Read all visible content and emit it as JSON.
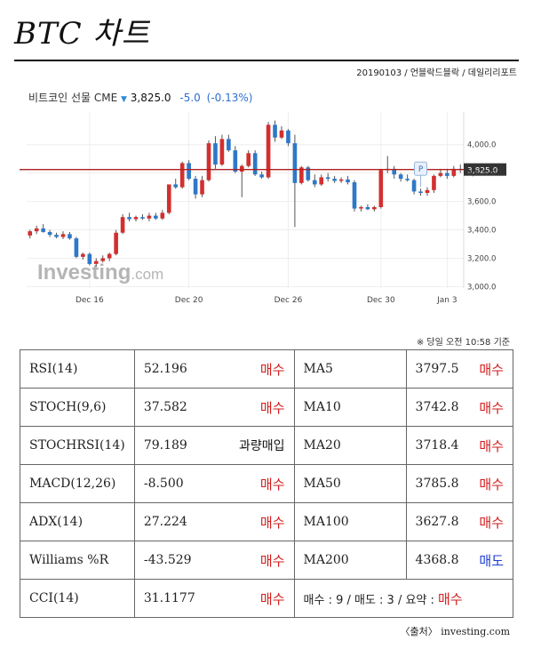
{
  "header": {
    "title": "BTC 차트",
    "meta": "20190103 / 언블락드블락 / 데일리리포트"
  },
  "chart_header": {
    "instrument": "비트코인 선물 CME",
    "price": "3,825.0",
    "change": "-5.0",
    "change_pct": "(-0.13%)",
    "marker_label": "P"
  },
  "watermark": {
    "main": "Investing",
    "suffix": ".com"
  },
  "chart_data": {
    "type": "candlestick",
    "x_tick_labels": [
      "Dec 16",
      "Dec 20",
      "Dec 26",
      "Dec 30",
      "Jan 3"
    ],
    "y_tick_labels": [
      "3,000.0",
      "3,200.0",
      "3,400.0",
      "3,600.0",
      "3,800.0",
      "4,000.0"
    ],
    "y_ticks": [
      3000,
      3200,
      3400,
      3600,
      3800,
      4000
    ],
    "ylim": [
      2990,
      4230
    ],
    "current_price": 3825,
    "current_label": "3,825.0",
    "colors": {
      "up": "#d32f2f",
      "down": "#2e78c8",
      "line": "#b02020"
    },
    "candles": [
      {
        "o": 3360,
        "h": 3400,
        "l": 3340,
        "c": 3390
      },
      {
        "o": 3390,
        "h": 3430,
        "l": 3370,
        "c": 3410
      },
      {
        "o": 3410,
        "h": 3440,
        "l": 3380,
        "c": 3385
      },
      {
        "o": 3385,
        "h": 3400,
        "l": 3350,
        "c": 3365
      },
      {
        "o": 3365,
        "h": 3380,
        "l": 3340,
        "c": 3350
      },
      {
        "o": 3350,
        "h": 3390,
        "l": 3335,
        "c": 3370
      },
      {
        "o": 3370,
        "h": 3385,
        "l": 3330,
        "c": 3340
      },
      {
        "o": 3340,
        "h": 3350,
        "l": 3200,
        "c": 3210
      },
      {
        "o": 3210,
        "h": 3240,
        "l": 3190,
        "c": 3230
      },
      {
        "o": 3230,
        "h": 3240,
        "l": 3150,
        "c": 3160
      },
      {
        "o": 3160,
        "h": 3200,
        "l": 3140,
        "c": 3180
      },
      {
        "o": 3180,
        "h": 3220,
        "l": 3170,
        "c": 3200
      },
      {
        "o": 3200,
        "h": 3240,
        "l": 3180,
        "c": 3230
      },
      {
        "o": 3230,
        "h": 3400,
        "l": 3220,
        "c": 3380
      },
      {
        "o": 3380,
        "h": 3510,
        "l": 3370,
        "c": 3490
      },
      {
        "o": 3490,
        "h": 3520,
        "l": 3460,
        "c": 3475
      },
      {
        "o": 3475,
        "h": 3500,
        "l": 3460,
        "c": 3490
      },
      {
        "o": 3490,
        "h": 3510,
        "l": 3470,
        "c": 3480
      },
      {
        "o": 3480,
        "h": 3520,
        "l": 3460,
        "c": 3500
      },
      {
        "o": 3500,
        "h": 3520,
        "l": 3470,
        "c": 3480
      },
      {
        "o": 3480,
        "h": 3540,
        "l": 3470,
        "c": 3520
      },
      {
        "o": 3520,
        "h": 3720,
        "l": 3510,
        "c": 3720
      },
      {
        "o": 3720,
        "h": 3760,
        "l": 3690,
        "c": 3700
      },
      {
        "o": 3700,
        "h": 3880,
        "l": 3690,
        "c": 3870
      },
      {
        "o": 3870,
        "h": 3890,
        "l": 3750,
        "c": 3760
      },
      {
        "o": 3760,
        "h": 3780,
        "l": 3620,
        "c": 3650
      },
      {
        "o": 3650,
        "h": 3780,
        "l": 3630,
        "c": 3750
      },
      {
        "o": 3750,
        "h": 4030,
        "l": 3740,
        "c": 4010
      },
      {
        "o": 4010,
        "h": 4060,
        "l": 3830,
        "c": 3860
      },
      {
        "o": 3860,
        "h": 4070,
        "l": 3850,
        "c": 4040
      },
      {
        "o": 4040,
        "h": 4070,
        "l": 3950,
        "c": 3960
      },
      {
        "o": 3960,
        "h": 3990,
        "l": 3800,
        "c": 3810
      },
      {
        "o": 3810,
        "h": 3860,
        "l": 3630,
        "c": 3850
      },
      {
        "o": 3850,
        "h": 3960,
        "l": 3840,
        "c": 3940
      },
      {
        "o": 3940,
        "h": 3960,
        "l": 3780,
        "c": 3790
      },
      {
        "o": 3790,
        "h": 3810,
        "l": 3760,
        "c": 3770
      },
      {
        "o": 3770,
        "h": 4160,
        "l": 3760,
        "c": 4140
      },
      {
        "o": 4140,
        "h": 4170,
        "l": 4020,
        "c": 4050
      },
      {
        "o": 4050,
        "h": 4130,
        "l": 4040,
        "c": 4100
      },
      {
        "o": 4100,
        "h": 4110,
        "l": 3990,
        "c": 4010
      },
      {
        "o": 4010,
        "h": 4070,
        "l": 3420,
        "c": 3730
      },
      {
        "o": 3730,
        "h": 3850,
        "l": 3720,
        "c": 3840
      },
      {
        "o": 3840,
        "h": 3850,
        "l": 3740,
        "c": 3750
      },
      {
        "o": 3750,
        "h": 3790,
        "l": 3700,
        "c": 3720
      },
      {
        "o": 3720,
        "h": 3790,
        "l": 3710,
        "c": 3770
      },
      {
        "o": 3770,
        "h": 3800,
        "l": 3740,
        "c": 3760
      },
      {
        "o": 3760,
        "h": 3780,
        "l": 3730,
        "c": 3745
      },
      {
        "o": 3745,
        "h": 3770,
        "l": 3730,
        "c": 3755
      },
      {
        "o": 3755,
        "h": 3780,
        "l": 3720,
        "c": 3735
      },
      {
        "o": 3735,
        "h": 3750,
        "l": 3530,
        "c": 3550
      },
      {
        "o": 3550,
        "h": 3570,
        "l": 3530,
        "c": 3560
      },
      {
        "o": 3560,
        "h": 3580,
        "l": 3540,
        "c": 3545
      },
      {
        "o": 3545,
        "h": 3570,
        "l": 3530,
        "c": 3560
      },
      {
        "o": 3560,
        "h": 3830,
        "l": 3550,
        "c": 3820
      },
      {
        "o": 3820,
        "h": 3920,
        "l": 3800,
        "c": 3830
      },
      {
        "o": 3830,
        "h": 3850,
        "l": 3760,
        "c": 3790
      },
      {
        "o": 3790,
        "h": 3800,
        "l": 3740,
        "c": 3760
      },
      {
        "o": 3760,
        "h": 3790,
        "l": 3740,
        "c": 3750
      },
      {
        "o": 3750,
        "h": 3760,
        "l": 3650,
        "c": 3670
      },
      {
        "o": 3670,
        "h": 3690,
        "l": 3640,
        "c": 3660
      },
      {
        "o": 3660,
        "h": 3700,
        "l": 3640,
        "c": 3680
      },
      {
        "o": 3680,
        "h": 3790,
        "l": 3660,
        "c": 3780
      },
      {
        "o": 3780,
        "h": 3830,
        "l": 3770,
        "c": 3800
      },
      {
        "o": 3800,
        "h": 3830,
        "l": 3760,
        "c": 3780
      },
      {
        "o": 3780,
        "h": 3850,
        "l": 3770,
        "c": 3830
      },
      {
        "o": 3830,
        "h": 3860,
        "l": 3800,
        "c": 3825
      }
    ],
    "x_tick_indices": [
      9,
      24,
      39,
      53,
      63
    ],
    "marker_index": 59
  },
  "time_note": "※ 당일 오전 10:58 기준",
  "indicators": [
    {
      "name": "RSI(14)",
      "value": "52.196",
      "signal": "매수",
      "type": "buy",
      "ma_name": "MA5",
      "ma_value": "3797.5",
      "ma_signal": "매수",
      "ma_type": "buy"
    },
    {
      "name": "STOCH(9,6)",
      "value": "37.582",
      "signal": "매수",
      "type": "buy",
      "ma_name": "MA10",
      "ma_value": "3742.8",
      "ma_signal": "매수",
      "ma_type": "buy"
    },
    {
      "name": "STOCHRSI(14)",
      "value": "79.189",
      "signal": "과량매입",
      "type": "neutral",
      "ma_name": "MA20",
      "ma_value": "3718.4",
      "ma_signal": "매수",
      "ma_type": "buy"
    },
    {
      "name": "MACD(12,26)",
      "value": "-8.500",
      "signal": "매수",
      "type": "buy",
      "ma_name": "MA50",
      "ma_value": "3785.8",
      "ma_signal": "매수",
      "ma_type": "buy"
    },
    {
      "name": "ADX(14)",
      "value": "27.224",
      "signal": "매수",
      "type": "buy",
      "ma_name": "MA100",
      "ma_value": "3627.8",
      "ma_signal": "매수",
      "ma_type": "buy"
    },
    {
      "name": "Williams %R",
      "value": "-43.529",
      "signal": "매수",
      "type": "buy",
      "ma_name": "MA200",
      "ma_value": "4368.8",
      "ma_signal": "매도",
      "ma_type": "sell"
    }
  ],
  "last_row": {
    "name": "CCI(14)",
    "value": "31.1177",
    "signal": "매수",
    "summary_prefix": "매수 : 9 / 매도 : 3 / 요약 : ",
    "summary_result": "매수"
  },
  "source": "〈출처〉 investing.com"
}
